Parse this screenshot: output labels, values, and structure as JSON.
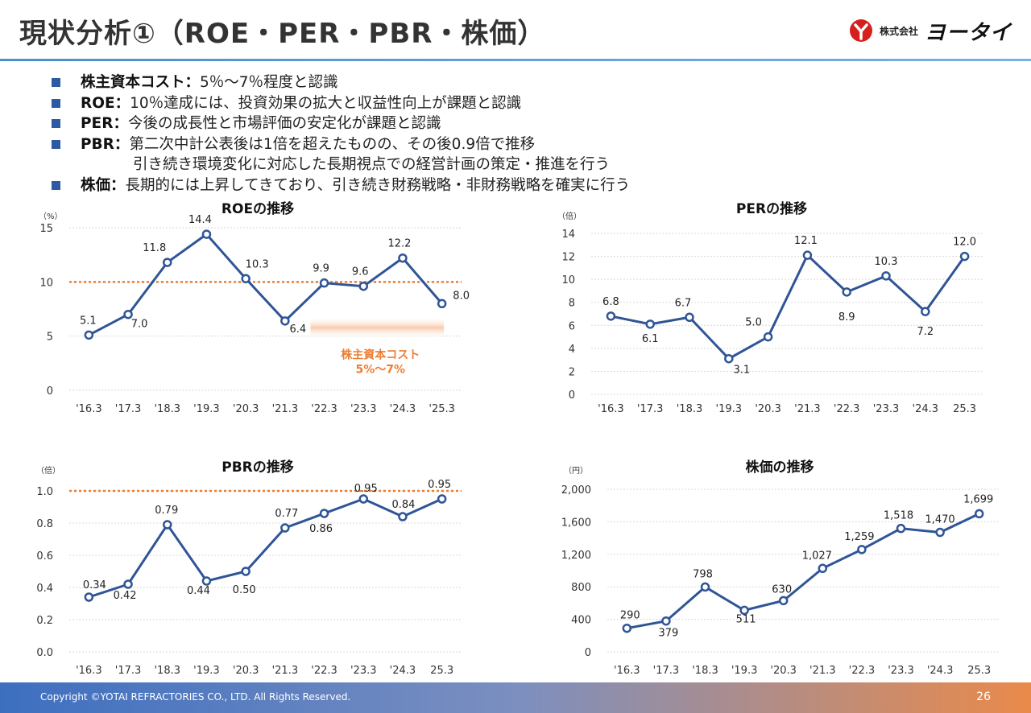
{
  "header": {
    "title": "現状分析①（ROE・PER・PBR・株価）",
    "logo_small": "株式会社",
    "logo_big": "ヨータイ"
  },
  "bullets": [
    {
      "key": "株主資本コスト：",
      "text": "5％～7％程度と認識",
      "text2": ""
    },
    {
      "key": "ROE：",
      "text": "10％達成には、投資効果の拡大と収益性向上が課題と認識",
      "text2": ""
    },
    {
      "key": "PER：",
      "text": "今後の成長性と市場評価の安定化が課題と認識",
      "text2": ""
    },
    {
      "key": "PBR：",
      "text": "第二次中計公表後は1倍を超えたものの、その後0.9倍で推移",
      "text2": "引き続き環境変化に対応した長期視点での経営計画の策定・推進を行う"
    },
    {
      "key": "株価：",
      "text": "長期的には上昇してきており、引き続き財務戦略・非財務戦略を確実に行う",
      "text2": ""
    }
  ],
  "colors": {
    "series": "#2f5597",
    "reference": "#ed7d31",
    "band": "#f8cbad",
    "grid": "#d9d9d9"
  },
  "chart_data": [
    {
      "id": "roe",
      "type": "line",
      "title": "ROEの推移",
      "unit": "（%）",
      "categories": [
        "'16.3",
        "'17.3",
        "'18.3",
        "'19.3",
        "'20.3",
        "'21.3",
        "'22.3",
        "'23.3",
        "'24.3",
        "'25.3"
      ],
      "values": [
        5.1,
        7.0,
        11.8,
        14.4,
        10.3,
        6.4,
        9.9,
        9.6,
        12.2,
        8.0
      ],
      "labels": [
        "5.1",
        "7.0",
        "11.8",
        "14.4",
        "10.3",
        "6.4",
        "9.9",
        "9.6",
        "12.2",
        "8.0"
      ],
      "yticks": [
        0,
        5,
        10,
        15
      ],
      "yticklabels": [
        "0",
        "5",
        "10",
        "15"
      ],
      "ylim": [
        0,
        15
      ],
      "grid": true,
      "reference_line": 10,
      "band": {
        "from": 5,
        "to": 7,
        "label1": "株主資本コスト",
        "label2": "5%～7%"
      }
    },
    {
      "id": "per",
      "type": "line",
      "title": "PERの推移",
      "unit": "（倍）",
      "categories": [
        "'16.3",
        "'17.3",
        "'18.3",
        "'19.3",
        "'20.3",
        "'21.3",
        "'22.3",
        "'23.3",
        "'24.3",
        "25.3"
      ],
      "values": [
        6.8,
        6.1,
        6.7,
        3.1,
        5.0,
        12.1,
        8.9,
        10.3,
        7.2,
        12.0
      ],
      "labels": [
        "6.8",
        "6.1",
        "6.7",
        "3.1",
        "5.0",
        "12.1",
        "8.9",
        "10.3",
        "7.2",
        "12.0"
      ],
      "yticks": [
        0,
        2,
        4,
        6,
        8,
        10,
        12,
        14
      ],
      "yticklabels": [
        "0",
        "2",
        "4",
        "6",
        "8",
        "10",
        "12",
        "14"
      ],
      "ylim": [
        0,
        14
      ],
      "grid": true
    },
    {
      "id": "pbr",
      "type": "line",
      "title": "PBRの推移",
      "unit": "（倍）",
      "categories": [
        "'16.3",
        "'17.3",
        "'18.3",
        "'19.3",
        "'20.3",
        "'21.3",
        "'22.3",
        "'23.3",
        "'24.3",
        "25.3"
      ],
      "values": [
        0.34,
        0.42,
        0.79,
        0.44,
        0.5,
        0.77,
        0.86,
        0.95,
        0.84,
        0.95
      ],
      "labels": [
        "0.34",
        "0.42",
        "0.79",
        "0.44",
        "0.50",
        "0.77",
        "0.86",
        "0.95",
        "0.84",
        "0.95"
      ],
      "yticks": [
        0,
        0.2,
        0.4,
        0.6,
        0.8,
        1.0
      ],
      "yticklabels": [
        "0.0",
        "0.2",
        "0.4",
        "0.6",
        "0.8",
        "1.0"
      ],
      "ylim": [
        0,
        1.0
      ],
      "grid": true,
      "reference_line": 1.0
    },
    {
      "id": "stock",
      "type": "line",
      "title": "株価の推移",
      "unit": "（円）",
      "categories": [
        "'16.3",
        "'17.3",
        "'18.3",
        "'19.3",
        "'20.3",
        "'21.3",
        "'22.3",
        "'23.3",
        "'24.3",
        "25.3"
      ],
      "values": [
        290,
        379,
        798,
        511,
        630,
        1027,
        1259,
        1518,
        1470,
        1699
      ],
      "labels": [
        "290",
        "379",
        "798",
        "511",
        "630",
        "1,027",
        "1,259",
        "1,518",
        "1,470",
        "1,699"
      ],
      "yticks": [
        0,
        400,
        800,
        1200,
        1600,
        2000
      ],
      "yticklabels": [
        "0",
        "400",
        "800",
        "1,200",
        "1,600",
        "2,000"
      ],
      "ylim": [
        0,
        2000
      ],
      "grid": true
    }
  ],
  "footer": {
    "copyright": "Copyright ©YOTAI REFRACTORIES CO., LTD. All Rights Reserved.",
    "page": "26"
  }
}
